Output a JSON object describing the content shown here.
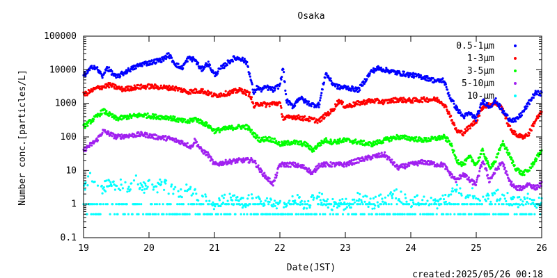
{
  "chart_data": {
    "type": "scatter",
    "title": "Osaka",
    "xlabel": "Date(JST)",
    "ylabel": "Number conc.[particles/L]",
    "footer": "created:2025/05/26 00:18",
    "x_scale": "linear",
    "y_scale": "log",
    "xlim": [
      19,
      26
    ],
    "ylim": [
      0.1,
      100000
    ],
    "x_ticks": [
      19,
      20,
      21,
      22,
      23,
      24,
      25,
      26
    ],
    "y_ticks": [
      {
        "value": 0.1,
        "label": "0.1"
      },
      {
        "value": 1,
        "label": "1"
      },
      {
        "value": 10,
        "label": "10"
      },
      {
        "value": 100,
        "label": "100"
      },
      {
        "value": 1000,
        "label": "1000"
      },
      {
        "value": 10000,
        "label": "10000"
      },
      {
        "value": 100000,
        "label": "100000"
      }
    ],
    "grid": false,
    "legend_position": "top-right",
    "series": [
      {
        "name": "0.5-1μm",
        "color": "#0000ff",
        "x": [
          19.0,
          19.15,
          19.2,
          19.3,
          19.35,
          19.5,
          19.7,
          19.9,
          20.0,
          20.2,
          20.3,
          20.4,
          20.5,
          20.6,
          20.7,
          20.8,
          20.9,
          21.0,
          21.1,
          21.2,
          21.3,
          21.4,
          21.5,
          21.6,
          21.65,
          21.7,
          21.8,
          21.9,
          22.0,
          22.05,
          22.1,
          22.2,
          22.3,
          22.4,
          22.5,
          22.6,
          22.7,
          22.8,
          22.9,
          23.0,
          23.2,
          23.4,
          23.5,
          23.6,
          23.8,
          24.0,
          24.2,
          24.4,
          24.5,
          24.6,
          24.7,
          24.8,
          24.9,
          25.0,
          25.1,
          25.2,
          25.3,
          25.4,
          25.5,
          25.6,
          25.7,
          25.8,
          25.9,
          26.0
        ],
        "values": [
          6500,
          13000,
          11000,
          6000,
          12000,
          6000,
          10000,
          15000,
          16000,
          20000,
          28000,
          15000,
          11000,
          22000,
          20000,
          10000,
          16000,
          7000,
          11000,
          16000,
          22000,
          22000,
          16000,
          2000,
          3000,
          2500,
          3000,
          2500,
          3500,
          12000,
          1200,
          800,
          1500,
          1100,
          900,
          900,
          8000,
          4000,
          3000,
          3000,
          2500,
          9000,
          11000,
          10000,
          8000,
          7000,
          6000,
          4500,
          5000,
          1500,
          700,
          400,
          500,
          350,
          1200,
          800,
          1200,
          600,
          350,
          300,
          500,
          1000,
          2000,
          2000
        ]
      },
      {
        "name": "1-3μm",
        "color": "#ff0000",
        "x": [
          19.0,
          19.2,
          19.4,
          19.6,
          19.8,
          20.0,
          20.2,
          20.4,
          20.6,
          20.8,
          21.0,
          21.2,
          21.4,
          21.55,
          21.6,
          21.7,
          21.8,
          21.9,
          22.0,
          22.05,
          22.2,
          22.4,
          22.6,
          22.7,
          22.8,
          22.9,
          23.0,
          23.2,
          23.4,
          23.6,
          23.8,
          24.0,
          24.2,
          24.4,
          24.5,
          24.6,
          24.65,
          24.7,
          24.8,
          24.9,
          25.0,
          25.1,
          25.2,
          25.3,
          25.4,
          25.5,
          25.6,
          25.7,
          25.8,
          25.9,
          26.0
        ],
        "values": [
          1800,
          2800,
          3500,
          2600,
          3000,
          3200,
          3000,
          2800,
          2200,
          2400,
          1700,
          2000,
          2500,
          1800,
          800,
          1000,
          900,
          1000,
          1000,
          350,
          400,
          350,
          300,
          450,
          600,
          1200,
          800,
          1000,
          1200,
          1100,
          1300,
          1200,
          1300,
          1300,
          1000,
          450,
          250,
          150,
          130,
          200,
          300,
          800,
          900,
          1000,
          700,
          200,
          120,
          100,
          120,
          300,
          550
        ]
      },
      {
        "name": "3-5μm",
        "color": "#00ff00",
        "x": [
          19.0,
          19.2,
          19.3,
          19.5,
          19.7,
          19.9,
          20.1,
          20.3,
          20.5,
          20.6,
          20.7,
          20.9,
          21.0,
          21.2,
          21.4,
          21.5,
          21.6,
          21.7,
          21.8,
          21.9,
          22.0,
          22.2,
          22.4,
          22.5,
          22.6,
          22.7,
          22.8,
          23.0,
          23.2,
          23.4,
          23.6,
          23.8,
          24.0,
          24.2,
          24.4,
          24.5,
          24.6,
          24.7,
          24.8,
          24.9,
          25.0,
          25.1,
          25.2,
          25.3,
          25.4,
          25.5,
          25.6,
          25.7,
          25.8,
          25.9,
          26.0
        ],
        "values": [
          200,
          400,
          600,
          350,
          400,
          450,
          400,
          380,
          300,
          280,
          350,
          220,
          150,
          180,
          200,
          200,
          120,
          80,
          90,
          80,
          60,
          70,
          60,
          40,
          60,
          80,
          70,
          80,
          70,
          60,
          80,
          100,
          90,
          80,
          90,
          100,
          70,
          20,
          15,
          25,
          15,
          40,
          12,
          20,
          70,
          30,
          12,
          8,
          10,
          20,
          40
        ]
      },
      {
        "name": "5-10μm",
        "color": "#a020f0",
        "x": [
          19.0,
          19.2,
          19.3,
          19.5,
          19.7,
          19.9,
          20.1,
          20.3,
          20.5,
          20.65,
          20.7,
          20.8,
          20.9,
          21.0,
          21.2,
          21.4,
          21.6,
          21.7,
          21.8,
          21.9,
          22.0,
          22.2,
          22.4,
          22.5,
          22.6,
          22.8,
          23.0,
          23.2,
          23.4,
          23.6,
          23.8,
          24.0,
          24.2,
          24.4,
          24.5,
          24.6,
          24.7,
          24.8,
          24.9,
          25.0,
          25.1,
          25.2,
          25.3,
          25.4,
          25.5,
          25.6,
          25.7,
          25.8,
          25.9,
          26.0
        ],
        "values": [
          40,
          80,
          150,
          100,
          110,
          120,
          100,
          90,
          70,
          50,
          80,
          40,
          30,
          15,
          18,
          20,
          20,
          10,
          6,
          4,
          15,
          15,
          12,
          8,
          15,
          15,
          15,
          20,
          25,
          30,
          12,
          15,
          18,
          15,
          15,
          8,
          5,
          8,
          5,
          4,
          20,
          5,
          10,
          18,
          5,
          3,
          3,
          4,
          3,
          4
        ]
      },
      {
        "name": "10-μm",
        "color": "#00ffff",
        "x": [
          19.0,
          19.1,
          19.2,
          19.3,
          19.4,
          19.5,
          19.6,
          19.7,
          19.8,
          19.9,
          20.0,
          20.1,
          20.2,
          20.3,
          20.4,
          20.5,
          20.6,
          20.7,
          20.8,
          21.0,
          21.2,
          21.4,
          21.6,
          21.7,
          21.8,
          22.0,
          22.2,
          22.4,
          22.6,
          22.8,
          23.0,
          23.2,
          23.4,
          23.6,
          23.8,
          24.0,
          24.2,
          24.4,
          24.6,
          24.7,
          24.8,
          25.0,
          25.2,
          25.4,
          25.6,
          25.8,
          26.0
        ],
        "values": [
          3,
          6,
          4,
          3,
          5,
          3,
          4,
          3,
          5,
          3,
          4,
          3,
          4,
          3,
          3,
          2,
          3,
          2,
          1.5,
          1,
          1.5,
          1,
          1.5,
          1,
          1.5,
          1,
          1.5,
          1,
          1.5,
          1,
          1,
          1.5,
          1,
          1.5,
          2,
          1,
          1.5,
          1,
          1.5,
          3,
          2,
          2,
          1.5,
          2,
          1,
          1.5,
          1
        ]
      }
    ]
  }
}
